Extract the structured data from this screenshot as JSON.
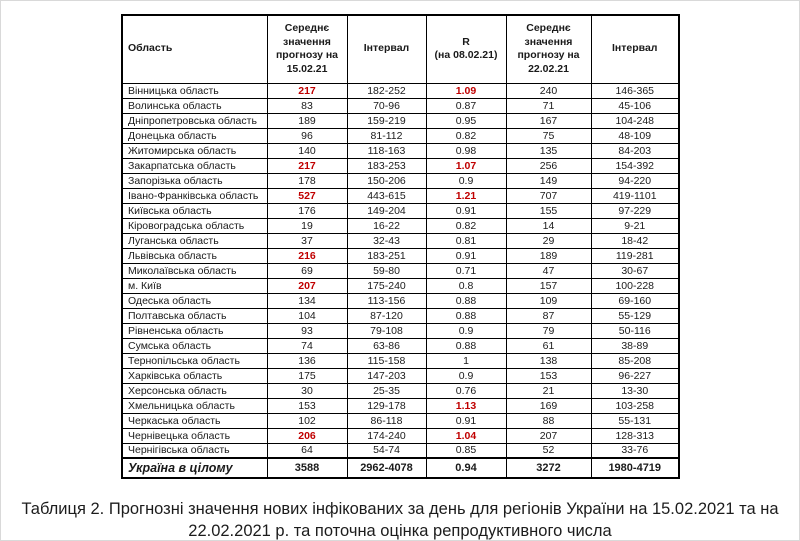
{
  "colors": {
    "highlight_red": "#C00000",
    "text": "#1a1a1a",
    "table_border": "#000000"
  },
  "caption": {
    "text": "Таблиця 2. Прогнозні значення нових інфікованих за день для регіонів України на 15.02.2021 та на 22.02.2021 р. та поточна оцінка репродуктивного числа"
  },
  "chart_data": {
    "type": "table",
    "title": "Таблиця 2. Прогнозні значення нових інфікованих за день для регіонів України на 15.02.2021 та на 22.02.2021 р. та поточна оцінка репродуктивного числа",
    "columns": [
      "Область",
      "Середнє значення прогнозу на 15.02.21",
      "Інтервал",
      "R\n(на 08.02.21)",
      "Середнє значення прогнозу на 22.02.21",
      "Інтервал"
    ],
    "rows": [
      {
        "region": "Вінницька область",
        "mean15": "217",
        "mean15_red": true,
        "interval15": "182-252",
        "r": "1.09",
        "r_red": true,
        "mean22": "240",
        "interval22": "146-365"
      },
      {
        "region": "Волинська область",
        "mean15": "83",
        "mean15_red": false,
        "interval15": "70-96",
        "r": "0.87",
        "r_red": false,
        "mean22": "71",
        "interval22": "45-106"
      },
      {
        "region": "Дніпропетровська область",
        "mean15": "189",
        "mean15_red": false,
        "interval15": "159-219",
        "r": "0.95",
        "r_red": false,
        "mean22": "167",
        "interval22": "104-248"
      },
      {
        "region": "Донецька область",
        "mean15": "96",
        "mean15_red": false,
        "interval15": "81-112",
        "r": "0.82",
        "r_red": false,
        "mean22": "75",
        "interval22": "48-109"
      },
      {
        "region": "Житомирська область",
        "mean15": "140",
        "mean15_red": false,
        "interval15": "118-163",
        "r": "0.98",
        "r_red": false,
        "mean22": "135",
        "interval22": "84-203"
      },
      {
        "region": "Закарпатська область",
        "mean15": "217",
        "mean15_red": true,
        "interval15": "183-253",
        "r": "1.07",
        "r_red": true,
        "mean22": "256",
        "interval22": "154-392"
      },
      {
        "region": "Запорізька область",
        "mean15": "178",
        "mean15_red": false,
        "interval15": "150-206",
        "r": "0.9",
        "r_red": false,
        "mean22": "149",
        "interval22": "94-220"
      },
      {
        "region": "Івано-Франківська область",
        "mean15": "527",
        "mean15_red": true,
        "interval15": "443-615",
        "r": "1.21",
        "r_red": true,
        "mean22": "707",
        "interval22": "419-1101"
      },
      {
        "region": "Київська область",
        "mean15": "176",
        "mean15_red": false,
        "interval15": "149-204",
        "r": "0.91",
        "r_red": false,
        "mean22": "155",
        "interval22": "97-229"
      },
      {
        "region": "Кіровоградська область",
        "mean15": "19",
        "mean15_red": false,
        "interval15": "16-22",
        "r": "0.82",
        "r_red": false,
        "mean22": "14",
        "interval22": "9-21"
      },
      {
        "region": "Луганська область",
        "mean15": "37",
        "mean15_red": false,
        "interval15": "32-43",
        "r": "0.81",
        "r_red": false,
        "mean22": "29",
        "interval22": "18-42"
      },
      {
        "region": "Львівська область",
        "mean15": "216",
        "mean15_red": true,
        "interval15": "183-251",
        "r": "0.91",
        "r_red": false,
        "mean22": "189",
        "interval22": "119-281"
      },
      {
        "region": "Миколаївська область",
        "mean15": "69",
        "mean15_red": false,
        "interval15": "59-80",
        "r": "0.71",
        "r_red": false,
        "mean22": "47",
        "interval22": "30-67"
      },
      {
        "region": "м. Київ",
        "mean15": "207",
        "mean15_red": true,
        "interval15": "175-240",
        "r": "0.8",
        "r_red": false,
        "mean22": "157",
        "interval22": "100-228"
      },
      {
        "region": "Одеська область",
        "mean15": "134",
        "mean15_red": false,
        "interval15": "113-156",
        "r": "0.88",
        "r_red": false,
        "mean22": "109",
        "interval22": "69-160"
      },
      {
        "region": "Полтавська область",
        "mean15": "104",
        "mean15_red": false,
        "interval15": "87-120",
        "r": "0.88",
        "r_red": false,
        "mean22": "87",
        "interval22": "55-129"
      },
      {
        "region": "Рівненська область",
        "mean15": "93",
        "mean15_red": false,
        "interval15": "79-108",
        "r": "0.9",
        "r_red": false,
        "mean22": "79",
        "interval22": "50-116"
      },
      {
        "region": "Сумська область",
        "mean15": "74",
        "mean15_red": false,
        "interval15": "63-86",
        "r": "0.88",
        "r_red": false,
        "mean22": "61",
        "interval22": "38-89"
      },
      {
        "region": "Тернопільська область",
        "mean15": "136",
        "mean15_red": false,
        "interval15": "115-158",
        "r": "1",
        "r_red": false,
        "mean22": "138",
        "interval22": "85-208"
      },
      {
        "region": "Харківська область",
        "mean15": "175",
        "mean15_red": false,
        "interval15": "147-203",
        "r": "0.9",
        "r_red": false,
        "mean22": "153",
        "interval22": "96-227"
      },
      {
        "region": "Херсонська область",
        "mean15": "30",
        "mean15_red": false,
        "interval15": "25-35",
        "r": "0.76",
        "r_red": false,
        "mean22": "21",
        "interval22": "13-30"
      },
      {
        "region": "Хмельницька область",
        "mean15": "153",
        "mean15_red": false,
        "interval15": "129-178",
        "r": "1.13",
        "r_red": true,
        "mean22": "169",
        "interval22": "103-258"
      },
      {
        "region": "Черкаська область",
        "mean15": "102",
        "mean15_red": false,
        "interval15": "86-118",
        "r": "0.91",
        "r_red": false,
        "mean22": "88",
        "interval22": "55-131"
      },
      {
        "region": "Чернівецька область",
        "mean15": "206",
        "mean15_red": true,
        "interval15": "174-240",
        "r": "1.04",
        "r_red": true,
        "mean22": "207",
        "interval22": "128-313"
      },
      {
        "region": "Чернігівська область",
        "mean15": "64",
        "mean15_red": false,
        "interval15": "54-74",
        "r": "0.85",
        "r_red": false,
        "mean22": "52",
        "interval22": "33-76"
      }
    ],
    "total_row": {
      "region": "Україна в цілому",
      "mean15": "3588",
      "interval15": "2962-4078",
      "r": "0.94",
      "mean22": "3272",
      "interval22": "1980-4719"
    }
  }
}
